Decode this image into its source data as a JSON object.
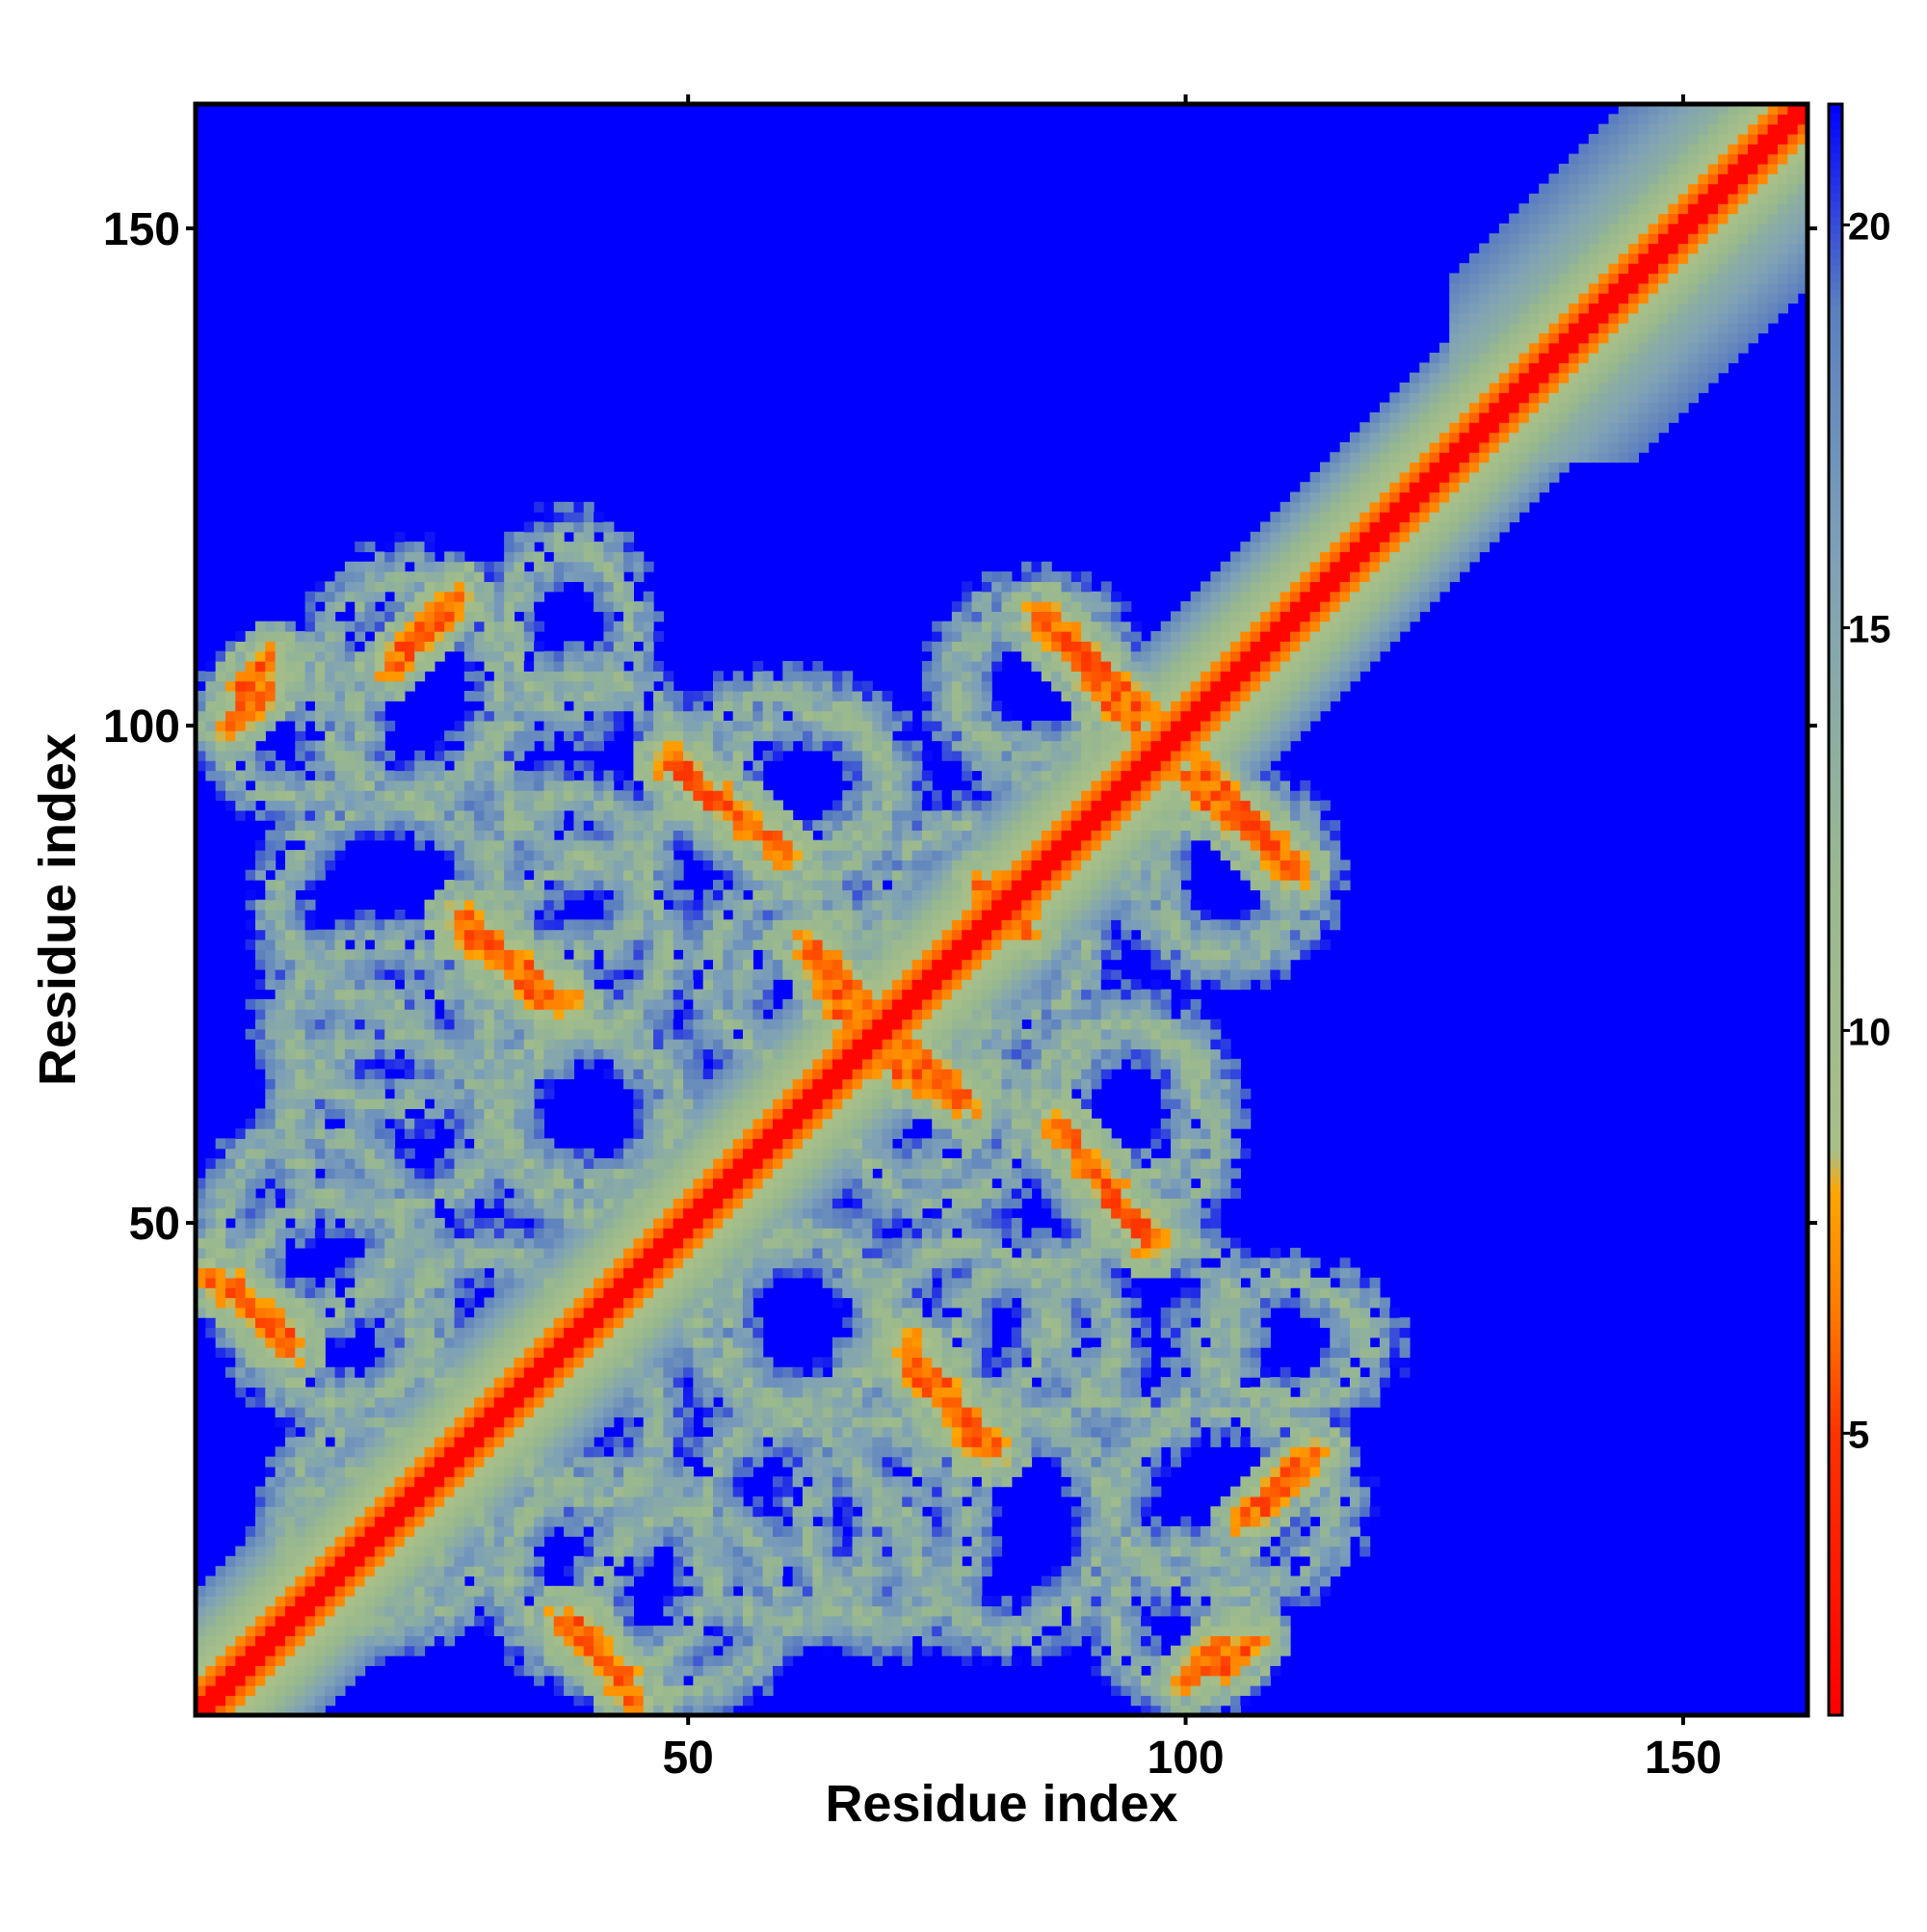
{
  "chart_data": {
    "type": "heatmap",
    "title": "",
    "xlabel": "Residue index",
    "ylabel": "Residue index",
    "n_residues": 162,
    "xlim": [
      1,
      162
    ],
    "ylim": [
      1,
      162
    ],
    "x_ticks": [
      50,
      100,
      150
    ],
    "y_ticks": [
      50,
      100,
      150
    ],
    "colorbar": {
      "ticks": [
        5,
        10,
        15,
        20
      ],
      "range": [
        1.5,
        21.5
      ],
      "stops": [
        {
          "value": 1.5,
          "color": "#ff0000"
        },
        {
          "value": 5.0,
          "color": "#ff3300"
        },
        {
          "value": 6.5,
          "color": "#ff7a00"
        },
        {
          "value": 8.0,
          "color": "#ffa500"
        },
        {
          "value": 8.5,
          "color": "#a8bf88"
        },
        {
          "value": 12.0,
          "color": "#98b890"
        },
        {
          "value": 16.0,
          "color": "#7da0b8"
        },
        {
          "value": 19.0,
          "color": "#5b7fbf"
        },
        {
          "value": 21.5,
          "color": "#0000ff"
        }
      ]
    },
    "background_color": "#0000ff",
    "diagonal_band": {
      "from": 1,
      "to": 162
    },
    "contact_segments": [
      {
        "x1": 108,
        "y1": 22,
        "x2": 113,
        "y2": 27
      },
      {
        "x1": 72,
        "y1": 36,
        "x2": 79,
        "y2": 28
      },
      {
        "x1": 37,
        "y1": 10,
        "x2": 44,
        "y2": 4
      },
      {
        "x1": 1,
        "y1": 45,
        "x2": 10,
        "y2": 39
      },
      {
        "x1": 87,
        "y1": 60,
        "x2": 96,
        "y2": 48
      },
      {
        "x1": 70,
        "y1": 66,
        "x2": 78,
        "y2": 62
      },
      {
        "x1": 62,
        "y1": 78,
        "x2": 68,
        "y2": 72
      },
      {
        "x1": 27,
        "y1": 81,
        "x2": 38,
        "y2": 72
      },
      {
        "x1": 48,
        "y1": 97,
        "x2": 59,
        "y2": 88
      },
      {
        "x1": 98,
        "y1": 96,
        "x2": 111,
        "y2": 85
      },
      {
        "x1": 86,
        "y1": 111,
        "x2": 96,
        "y2": 101
      },
      {
        "x1": 20,
        "y1": 106,
        "x2": 26,
        "y2": 112
      },
      {
        "x1": 4,
        "y1": 100,
        "x2": 8,
        "y2": 104
      },
      {
        "x1": 80,
        "y1": 84,
        "x2": 84,
        "y2": 79
      },
      {
        "x1": 103,
        "y1": 5,
        "x2": 107,
        "y2": 8
      }
    ],
    "contact_rings": [
      {
        "x": 10,
        "y": 100,
        "rx": 7,
        "ry": 7
      },
      {
        "x": 38,
        "y": 110,
        "rx": 6,
        "ry": 8
      },
      {
        "x": 60,
        "y": 95,
        "rx": 10,
        "ry": 8
      },
      {
        "x": 85,
        "y": 103,
        "rx": 8,
        "ry": 8
      },
      {
        "x": 105,
        "y": 85,
        "rx": 8,
        "ry": 8
      },
      {
        "x": 93,
        "y": 62,
        "rx": 8,
        "ry": 8
      },
      {
        "x": 72,
        "y": 63,
        "rx": 8,
        "ry": 8
      },
      {
        "x": 60,
        "y": 75,
        "rx": 8,
        "ry": 8
      },
      {
        "x": 40,
        "y": 62,
        "rx": 9,
        "ry": 8
      },
      {
        "x": 20,
        "y": 70,
        "rx": 10,
        "ry": 8
      },
      {
        "x": 12,
        "y": 50,
        "rx": 9,
        "ry": 9
      },
      {
        "x": 38,
        "y": 85,
        "rx": 8,
        "ry": 8
      },
      {
        "x": 60,
        "y": 40,
        "rx": 9,
        "ry": 8
      },
      {
        "x": 78,
        "y": 40,
        "rx": 8,
        "ry": 8
      },
      {
        "x": 96,
        "y": 40,
        "rx": 9,
        "ry": 9
      },
      {
        "x": 104,
        "y": 22,
        "rx": 11,
        "ry": 9
      },
      {
        "x": 82,
        "y": 20,
        "rx": 10,
        "ry": 11
      },
      {
        "x": 60,
        "y": 20,
        "rx": 9,
        "ry": 10
      },
      {
        "x": 42,
        "y": 15,
        "rx": 10,
        "ry": 10
      },
      {
        "x": 18,
        "y": 20,
        "rx": 8,
        "ry": 10
      },
      {
        "x": 30,
        "y": 40,
        "rx": 8,
        "ry": 7
      },
      {
        "x": 78,
        "y": 82,
        "rx": 8,
        "ry": 8
      }
    ]
  }
}
